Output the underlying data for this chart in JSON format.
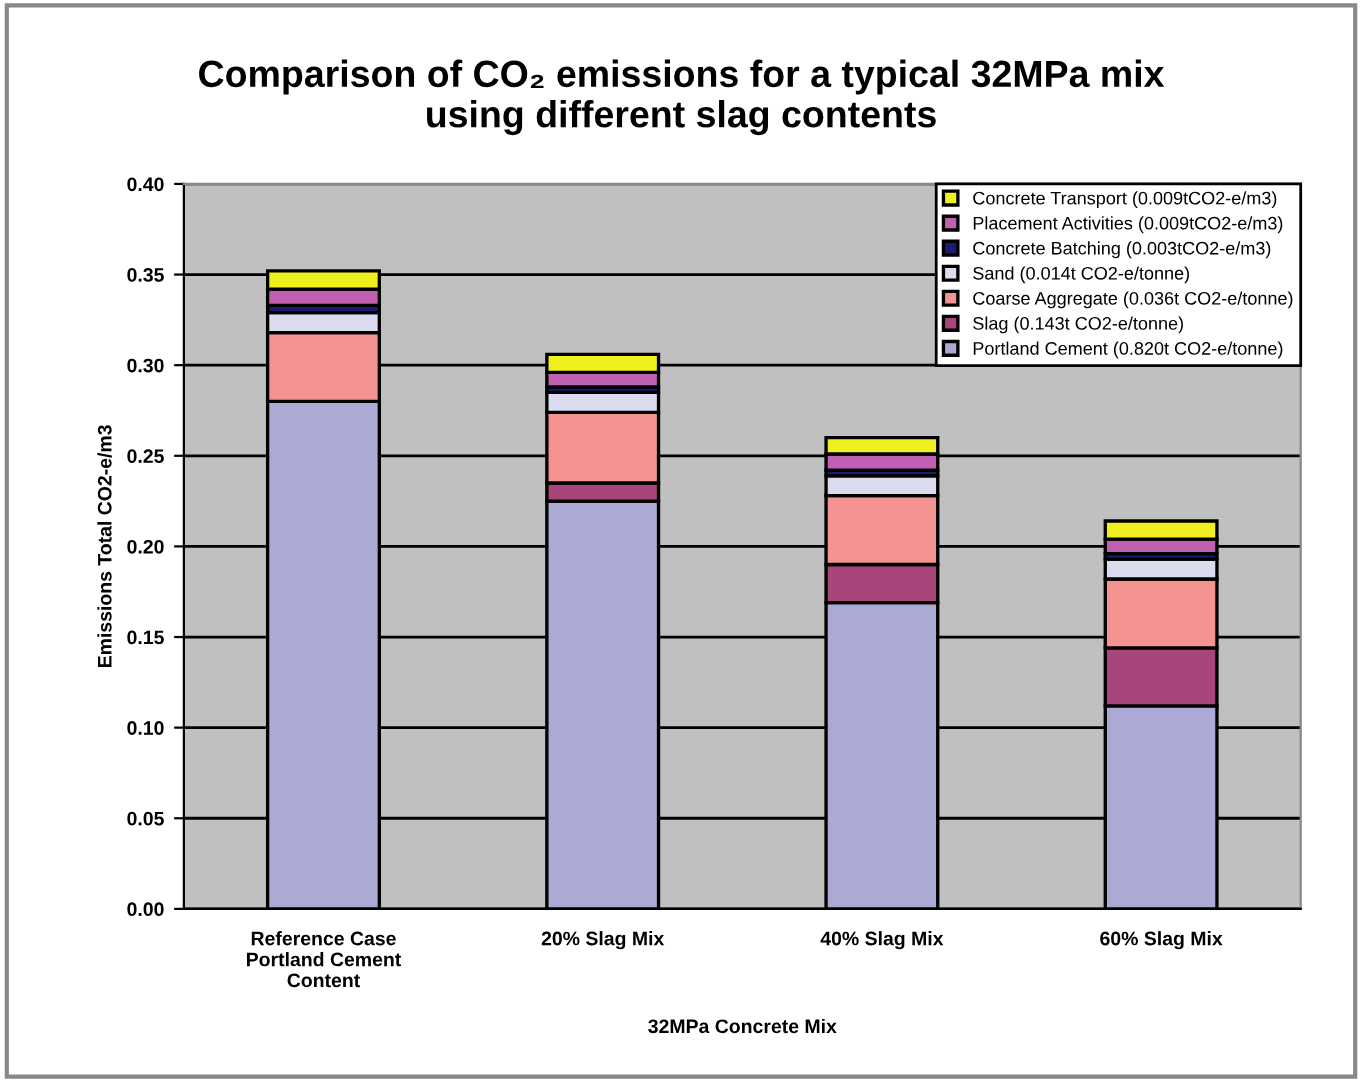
{
  "chart_data": {
    "type": "bar",
    "stacked": true,
    "title": "Comparison of CO₂ emissions for a typical 32MPa mix\nusing different slag contents",
    "xlabel": "32MPa Concrete Mix",
    "ylabel": "Emissions Total CO2-e/m3",
    "categories": [
      "Reference Case\nPortland Cement\nContent",
      "20% Slag Mix",
      "40% Slag Mix",
      "60% Slag Mix"
    ],
    "series": [
      {
        "name": "Portland Cement (0.820t CO2-e/tonne)",
        "color": "#aaaad5",
        "values": [
          0.28,
          0.225,
          0.169,
          0.112
        ]
      },
      {
        "name": "Slag (0.143t CO2-e/tonne)",
        "color": "#a8457a",
        "values": [
          0,
          0.01,
          0.021,
          0.032
        ]
      },
      {
        "name": "Coarse Aggregate (0.036t CO2-e/tonne)",
        "color": "#f49490",
        "values": [
          0.038,
          0.039,
          0.038,
          0.038
        ]
      },
      {
        "name": "Sand (0.014t CO2-e/tonne)",
        "color": "#dcdcf0",
        "values": [
          0.011,
          0.011,
          0.011,
          0.011
        ]
      },
      {
        "name": "Concrete Batching (0.003tCO2-e/m3)",
        "color": "#1a1a6e",
        "values": [
          0.004,
          0.003,
          0.003,
          0.003
        ]
      },
      {
        "name": "Placement Activities (0.009tCO2-e/m3)",
        "color": "#c060b0",
        "values": [
          0.009,
          0.008,
          0.009,
          0.008
        ]
      },
      {
        "name": "Concrete Transport (0.009tCO2-e/m3)",
        "color": "#f0f020",
        "values": [
          0.01,
          0.01,
          0.009,
          0.01
        ]
      }
    ],
    "ylim": [
      0,
      0.4
    ],
    "yticks": [
      {
        "value": 0,
        "label": "0.00"
      },
      {
        "value": 0.05,
        "label": "0.05"
      },
      {
        "value": 0.1,
        "label": "0.10"
      },
      {
        "value": 0.15,
        "label": "0.15"
      },
      {
        "value": 0.2,
        "label": "0.20"
      },
      {
        "value": 0.25,
        "label": "0.25"
      },
      {
        "value": 0.3,
        "label": "0.30"
      },
      {
        "value": 0.35,
        "label": "0.35"
      },
      {
        "value": 0.4,
        "label": "0.40"
      }
    ],
    "grid": "y",
    "legend": "top right"
  }
}
